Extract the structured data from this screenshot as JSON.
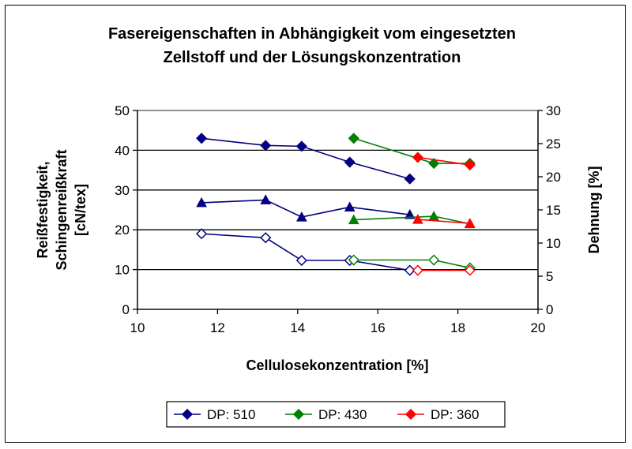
{
  "chart_data": {
    "type": "line",
    "title_lines": [
      "Fasereigenschaften in Abhängigkeit vom eingesetzten",
      "Zellstoff und der Lösungskonzentration"
    ],
    "xlabel": "Cellulosekonzentration [%]",
    "ylabel_lines": [
      "Reißfestigkeit,",
      "Schingenreißkraft",
      "[cN/tex]"
    ],
    "y2label": "Dehnung [%]",
    "xlim": [
      10,
      20
    ],
    "ylim": [
      0,
      50
    ],
    "y2lim": [
      0,
      30
    ],
    "x_ticks": [
      "10",
      "12",
      "14",
      "16",
      "18",
      "20"
    ],
    "y_ticks": [
      "0",
      "10",
      "20",
      "30",
      "40",
      "50"
    ],
    "y2_ticks": [
      "0",
      "5",
      "10",
      "15",
      "20",
      "25",
      "30"
    ],
    "grid": "horizontal",
    "legend_position": "bottom",
    "series": [
      {
        "name": "DP: 510",
        "color": "#000080",
        "groups": [
          {
            "axis": "left",
            "marker": "filled-diamond",
            "x": [
              11.6,
              13.2,
              14.1,
              15.3,
              16.8
            ],
            "y": [
              43,
              41.2,
              41,
              37,
              32.8
            ]
          },
          {
            "axis": "left",
            "marker": "filled-triangle",
            "x": [
              11.6,
              13.2,
              14.1,
              15.3,
              16.8
            ],
            "y": [
              26.8,
              27.5,
              23.2,
              25.7,
              23.8
            ]
          },
          {
            "axis": "left",
            "marker": "open-diamond",
            "x": [
              11.6,
              13.2,
              14.1,
              15.3,
              16.8
            ],
            "y": [
              19,
              18,
              12.3,
              12.3,
              9.8
            ]
          }
        ]
      },
      {
        "name": "DP: 430",
        "color": "#008000",
        "groups": [
          {
            "axis": "left",
            "marker": "filled-diamond",
            "x": [
              15.4,
              17.4,
              18.3
            ],
            "y": [
              43,
              36.7,
              36.7
            ]
          },
          {
            "axis": "left",
            "marker": "filled-triangle",
            "x": [
              15.4,
              17.4,
              18.3
            ],
            "y": [
              22.5,
              23.4,
              21.5
            ]
          },
          {
            "axis": "left",
            "marker": "open-diamond",
            "x": [
              15.4,
              17.4,
              18.3
            ],
            "y": [
              12.4,
              12.4,
              10.4
            ]
          }
        ]
      },
      {
        "name": "DP: 360",
        "color": "#ff0000",
        "groups": [
          {
            "axis": "left",
            "marker": "filled-diamond",
            "x": [
              17.0,
              18.3
            ],
            "y": [
              38.2,
              36.3
            ]
          },
          {
            "axis": "left",
            "marker": "filled-triangle",
            "x": [
              17.0,
              18.3
            ],
            "y": [
              22.6,
              21.6
            ]
          },
          {
            "axis": "left",
            "marker": "open-diamond",
            "x": [
              17.0,
              18.3
            ],
            "y": [
              9.8,
              9.8
            ]
          }
        ]
      }
    ]
  }
}
